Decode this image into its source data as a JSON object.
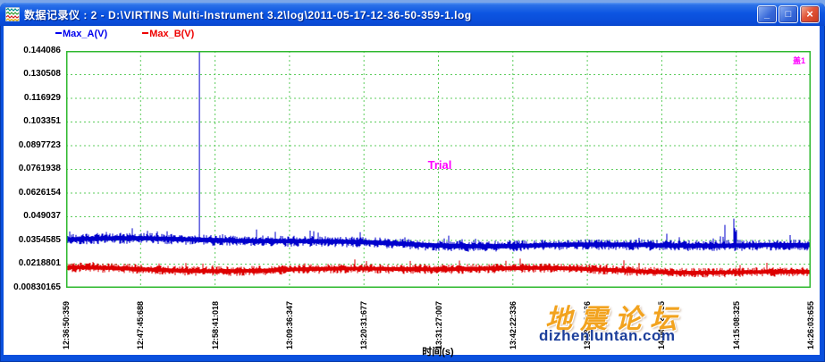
{
  "window": {
    "title": "数据记录仪 : 2 - D:\\VIRTINS Multi-Instrument 3.2\\log\\2011-05-17-12-36-50-359-1.log",
    "controls": {
      "minimize": "_",
      "maximize": "□",
      "close": "×"
    }
  },
  "legend": {
    "items": [
      {
        "label": "Max_A(V)",
        "color": "#0000ee"
      },
      {
        "label": "Max_B(V)",
        "color": "#ee0000"
      }
    ]
  },
  "chart_data": {
    "type": "line",
    "title": "",
    "xlabel": "时间(s)",
    "ylabel": "",
    "ylim": [
      0.00830165,
      0.144086
    ],
    "grid": {
      "border_color": "#2eb82e",
      "line_color": "#5ccc5c",
      "background": "#ffffff",
      "grid_on": true
    },
    "legend_position": "top-left",
    "x_ticks": [
      "12:36:50:359",
      "12:47:45:688",
      "12:58:41:018",
      "13:09:36:347",
      "13:20:31:677",
      "13:31:27:007",
      "13:42:22:336",
      "13:53:17:666",
      "14:04:12:995",
      "14:15:08:325",
      "14:26:03:655"
    ],
    "y_ticks": [
      "0.144086",
      "0.130508",
      "0.116929",
      "0.103351",
      "0.0897723",
      "0.0761938",
      "0.0626154",
      "0.049037",
      "0.0354585",
      "0.0218801",
      "0.00830165"
    ],
    "series": [
      {
        "name": "Max_A(V)",
        "color": "#0000cc",
        "baseline_start": 0.036,
        "baseline_end": 0.0315,
        "noise_amplitude": 0.0032,
        "spike_event": {
          "x_frac": 0.179,
          "peak": 0.144086
        },
        "burst_event": {
          "start_frac": 0.862,
          "end_frac": 0.912,
          "peak": 0.0503
        }
      },
      {
        "name": "Max_B(V)",
        "color": "#dd0000",
        "baseline_start": 0.0196,
        "baseline_end": 0.0178,
        "noise_amplitude": 0.0028
      }
    ],
    "annotation": {
      "text": "Trial",
      "color": "#ff00ff",
      "x_frac": 0.502,
      "y_value": 0.0785
    }
  },
  "corner_marker": {
    "text": "盖1",
    "color": "#ff00ff"
  },
  "watermark": {
    "title": "地震论坛",
    "url": "dizhenluntan.com",
    "title_color": "#f2a31f",
    "url_color": "#1d3f9b"
  }
}
